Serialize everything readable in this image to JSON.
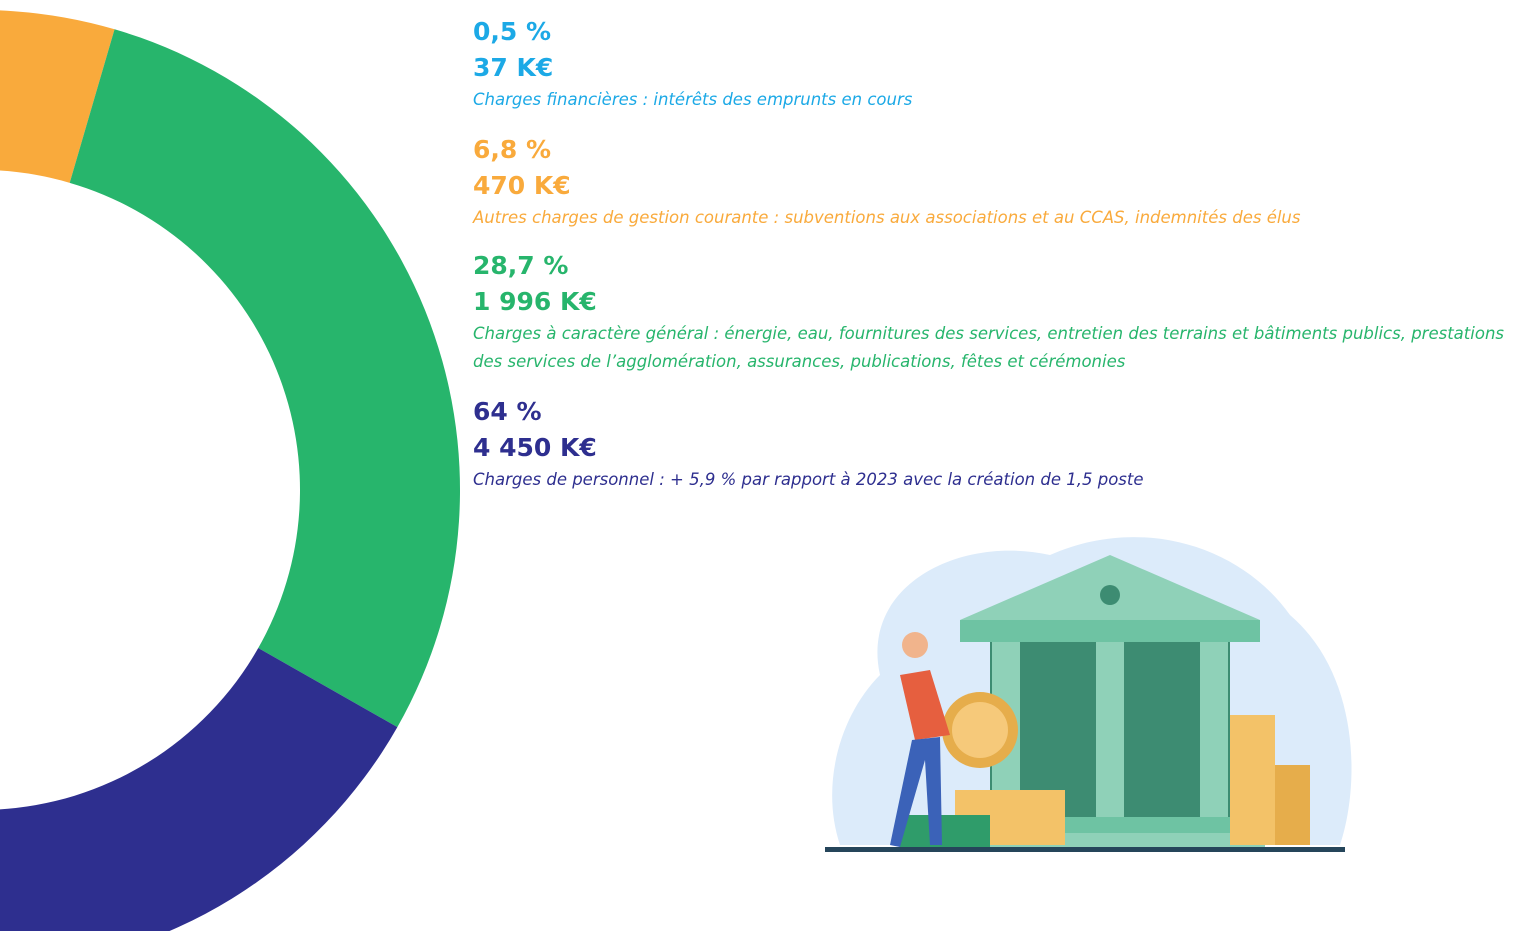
{
  "chart_data": {
    "type": "donut",
    "categories": [
      "Charges financières : intérêts des emprunts en cours",
      "Autres charges de gestion courante : subventions aux associations et au CCAS, indemnités des élus",
      "Charges à caractère général : énergie, eau, fournitures des services, entretien des terrains et bâtiments publics, prestations des services de l’agglomération, assurances, publications, fêtes et cérémonies",
      "Charges de personnel : + 5,9 % par rapport à 2023 avec la création de 1,5 poste"
    ],
    "values": [
      0.5,
      6.8,
      28.7,
      64
    ],
    "value_labels": [
      "0,5 %",
      "6,8 %",
      "28,7 %",
      "64 %"
    ],
    "amounts": [
      "37 K€",
      "470 K€",
      "1 996 K€",
      "4 450 K€"
    ],
    "colors": [
      "#1ca9e6",
      "#f9aa3c",
      "#27b56c",
      "#2e2f8f"
    ]
  }
}
